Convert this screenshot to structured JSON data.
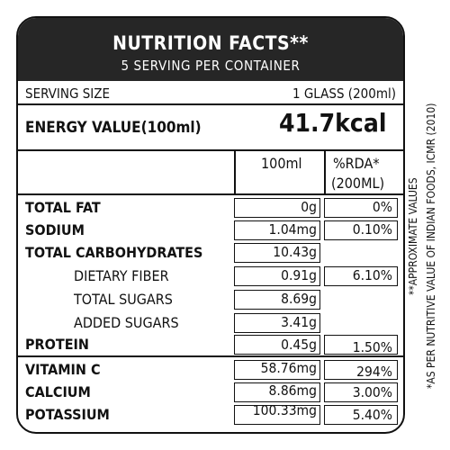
{
  "header": {
    "title": "NUTRITION FACTS**",
    "subtitle": "5 SERVING PER CONTAINER"
  },
  "serving": {
    "label": "SERVING SIZE",
    "value": "1 GLASS (200ml)"
  },
  "energy": {
    "label": "ENERGY VALUE(100ml)",
    "value": "41.7kcal"
  },
  "columns": {
    "per100": "100ml",
    "rda_line1": "%RDA*",
    "rda_line2": "(200ML)"
  },
  "rows": [
    {
      "name": "TOTAL FAT",
      "per100": "0g",
      "rda": "0%"
    },
    {
      "name": "SODIUM",
      "per100": "1.04mg",
      "rda": "0.10%"
    },
    {
      "name": "TOTAL CARBOHYDRATES",
      "per100": "10.43g",
      "rda": ""
    },
    {
      "name": "DIETARY FIBER",
      "per100": "0.91g",
      "rda": "6.10%"
    },
    {
      "name": "TOTAL SUGARS",
      "per100": "8.69g",
      "rda": ""
    },
    {
      "name": "ADDED SUGARS",
      "per100": "3.41g",
      "rda": ""
    },
    {
      "name": "PROTEIN",
      "per100": "0.45g",
      "rda": "1.50%"
    },
    {
      "name": "VITAMIN C",
      "per100": "58.76mg",
      "rda": "294%"
    },
    {
      "name": "CALCIUM",
      "per100": "8.86mg",
      "rda": "3.00%"
    },
    {
      "name": "POTASSIUM",
      "per100": "100.33mg",
      "rda": "5.40%"
    }
  ],
  "notes": {
    "approximate": "**APPROXIMATE VALUES",
    "source": "*AS PER NUTRITIVE VALUE OF INDIAN FOODS, ICMR (2010)"
  }
}
